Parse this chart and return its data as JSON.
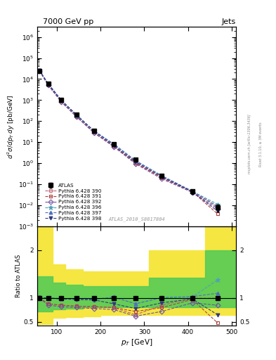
{
  "title_left": "7000 GeV pp",
  "title_right": "Jets",
  "ylabel_main": "$d^2\\sigma/dp_T\\,dy$ [pb/GeV]",
  "ylabel_ratio": "Ratio to ATLAS",
  "xlabel": "$p_T$ [GeV]",
  "watermark": "ATLAS_2010_S8817804",
  "right_label_top": "Rivet 3.1.10, ≥ 3M events",
  "right_label_bot": "mcplots.cern.ch [arXiv:1306.3436]",
  "pt_centers": [
    60,
    80,
    110,
    145,
    185,
    230,
    280,
    340,
    410,
    468
  ],
  "atlas_y": [
    25000.0,
    6000,
    1000,
    200,
    35,
    8.0,
    1.5,
    0.25,
    0.045,
    0.008
  ],
  "atlas_yerr_lo": [
    3000,
    700,
    120,
    25,
    4.5,
    1.2,
    0.25,
    0.05,
    0.01,
    0.003
  ],
  "atlas_yerr_hi": [
    3000,
    700,
    120,
    25,
    4.5,
    1.2,
    0.25,
    0.05,
    0.01,
    0.003
  ],
  "py390_ratio": [
    1.0,
    0.88,
    0.85,
    0.83,
    0.82,
    0.8,
    0.65,
    0.85,
    1.0,
    1.0
  ],
  "py391_ratio": [
    1.0,
    0.88,
    0.85,
    0.83,
    0.82,
    0.8,
    0.72,
    0.8,
    0.97,
    0.48
  ],
  "py392_ratio": [
    1.0,
    0.85,
    0.82,
    0.8,
    0.78,
    0.76,
    0.62,
    0.72,
    0.9,
    0.85
  ],
  "py396_ratio": [
    1.01,
    1.0,
    0.99,
    0.98,
    0.97,
    1.02,
    0.88,
    1.0,
    1.02,
    1.38
  ],
  "py397_ratio": [
    1.01,
    1.0,
    0.99,
    0.98,
    0.97,
    1.02,
    0.88,
    1.01,
    1.03,
    1.1
  ],
  "py398_ratio": [
    1.01,
    1.0,
    0.98,
    0.97,
    0.96,
    0.88,
    0.78,
    0.9,
    0.98,
    0.65
  ],
  "yellow_band_edges": [
    55,
    70,
    90,
    120,
    160,
    200,
    250,
    310,
    380,
    440,
    510
  ],
  "yellow_lo": [
    0.45,
    0.45,
    0.58,
    0.6,
    0.62,
    0.64,
    0.64,
    0.64,
    0.64,
    0.64,
    0.64
  ],
  "yellow_hi": [
    2.5,
    2.5,
    1.7,
    1.6,
    1.55,
    1.55,
    1.55,
    2.0,
    2.0,
    2.5,
    2.5
  ],
  "green_band_edges": [
    55,
    70,
    90,
    120,
    160,
    200,
    250,
    310,
    380,
    440,
    510
  ],
  "green_lo": [
    0.72,
    0.72,
    0.77,
    0.78,
    0.8,
    0.8,
    0.8,
    0.8,
    0.8,
    0.8,
    0.8
  ],
  "green_hi": [
    1.45,
    1.45,
    1.32,
    1.28,
    1.25,
    1.25,
    1.25,
    1.42,
    1.42,
    2.0,
    2.0
  ],
  "colors": {
    "py390": "#c06070",
    "py391": "#b04040",
    "py392": "#7050a0",
    "py396": "#50a0b8",
    "py397": "#5070b8",
    "py398": "#303880"
  },
  "markers": {
    "py390": "o",
    "py391": "s",
    "py392": "D",
    "py396": "*",
    "py397": "^",
    "py398": "v"
  },
  "labels": {
    "py390": "Pythia 6.428 390",
    "py391": "Pythia 6.428 391",
    "py392": "Pythia 6.428 392",
    "py396": "Pythia 6.428 396",
    "py397": "Pythia 6.428 397",
    "py398": "Pythia 6.428 398"
  },
  "xlim": [
    55,
    510
  ],
  "ylim_main_lo": 0.001,
  "ylim_main_hi": 3000000.0,
  "ylim_ratio_lo": 0.42,
  "ylim_ratio_hi": 2.5,
  "ratio_yticks": [
    0.5,
    1.0,
    2.0
  ],
  "ratio_yticklabels": [
    "0.5",
    "1",
    "2"
  ]
}
